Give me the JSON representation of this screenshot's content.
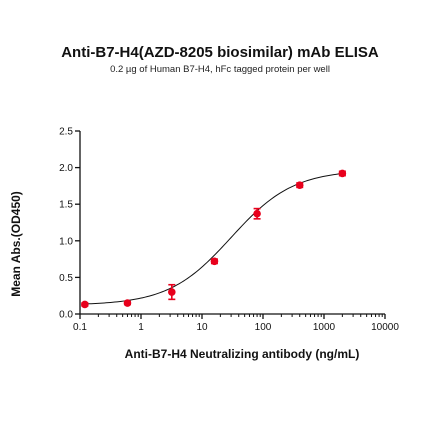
{
  "chart_data": {
    "type": "scatter",
    "title": "Anti-B7-H4(AZD-8205 biosimilar) mAb ELISA",
    "subtitle": "0.2 µg of Human B7-H4, hFc tagged protein per well",
    "xlabel": "Anti-B7-H4 Neutralizing antibody (ng/mL)",
    "ylabel": "Mean Abs.(OD450)",
    "x_scale": "log",
    "xlim": [
      0.1,
      10000
    ],
    "ylim": [
      0.0,
      2.5
    ],
    "x_ticks": [
      "0.1",
      "1",
      "10",
      "100",
      "1000",
      "10000"
    ],
    "y_ticks": [
      "0.0",
      "0.5",
      "1.0",
      "1.5",
      "2.0",
      "2.5"
    ],
    "grid": false,
    "series": [
      {
        "points": [
          {
            "x": 0.12,
            "y": 0.13,
            "err": 0.02
          },
          {
            "x": 0.6,
            "y": 0.15,
            "err": 0.02
          },
          {
            "x": 3.2,
            "y": 0.3,
            "err": 0.1
          },
          {
            "x": 16,
            "y": 0.72,
            "err": 0.03
          },
          {
            "x": 80,
            "y": 1.37,
            "err": 0.07
          },
          {
            "x": 400,
            "y": 1.76,
            "err": 0.03
          },
          {
            "x": 2000,
            "y": 1.92,
            "err": 0.03
          }
        ],
        "fit": {
          "bottom": 0.12,
          "top": 1.97,
          "ec50": 30,
          "hill": 0.85
        },
        "color": "#e8001c"
      }
    ]
  }
}
